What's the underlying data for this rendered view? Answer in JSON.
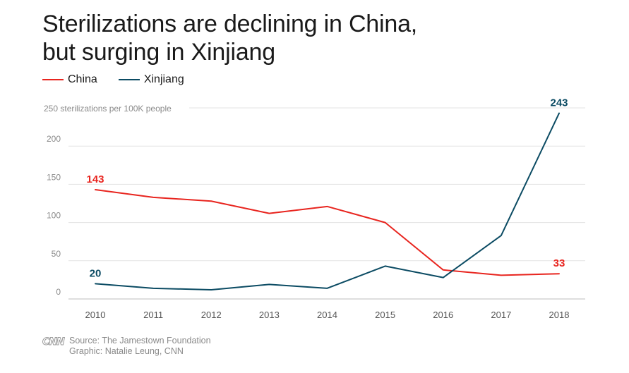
{
  "chart_data": {
    "type": "line",
    "title": "Sterilizations are declining in China, but surging in Xinjiang",
    "title_lines": [
      "Sterilizations are declining in China,",
      "but surging in Xinjiang"
    ],
    "ylabel": "250 sterilizations per 100K people",
    "ylim": [
      0,
      250
    ],
    "yticks": [
      0,
      50,
      100,
      150,
      200
    ],
    "grid": true,
    "legend_position": "top-left",
    "x": [
      "2010",
      "2011",
      "2012",
      "2013",
      "2014",
      "2015",
      "2016",
      "2017",
      "2018"
    ],
    "series": [
      {
        "name": "China",
        "color": "#e8251f",
        "values": [
          143,
          133,
          128,
          112,
          121,
          100,
          38,
          31,
          33
        ]
      },
      {
        "name": "Xinjiang",
        "color": "#0b4b63",
        "values": [
          20,
          14,
          12,
          19,
          14,
          43,
          28,
          83,
          243
        ]
      }
    ],
    "annotations": [
      {
        "series": "China",
        "index": 0,
        "text": "143",
        "color": "#e8251f"
      },
      {
        "series": "China",
        "index": 8,
        "text": "33",
        "color": "#e8251f"
      },
      {
        "series": "Xinjiang",
        "index": 0,
        "text": "20",
        "color": "#0b4b63"
      },
      {
        "series": "Xinjiang",
        "index": 8,
        "text": "243",
        "color": "#0b4b63"
      }
    ]
  },
  "legend": {
    "china_label": "China",
    "xinjiang_label": "Xinjiang"
  },
  "footer": {
    "logo": "CNN",
    "source": "Source: The Jamestown Foundation",
    "graphic": "Graphic: Natalie Leung, CNN"
  },
  "colors": {
    "china": "#e8251f",
    "xinjiang": "#0b4b63",
    "grid": "#e3e3e3",
    "axis_text": "#555555",
    "ylabel_text": "#8a8a8a"
  }
}
